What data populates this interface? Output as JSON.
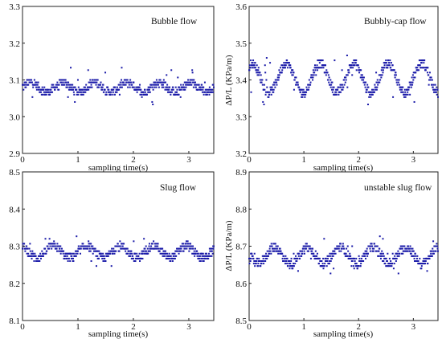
{
  "figure": {
    "marker_color": "#1a1aa8"
  },
  "chart_data": [
    {
      "type": "scatter",
      "title": "Bubble flow",
      "xlabel": "",
      "ylabel": "",
      "xlim": [
        0,
        3.45
      ],
      "ylim": [
        2.9,
        3.3
      ],
      "xticks": [
        "0",
        "1",
        "2",
        "3"
      ],
      "yticks": [
        "2.9",
        "3.0",
        "3.1",
        "3.2",
        "3.3"
      ],
      "series": [
        {
          "mean": 3.08,
          "amplitude": 0.013,
          "period": 0.58,
          "jitter": 0.011,
          "outlier_range": [
            3.03,
            3.135
          ],
          "x_range": [
            0,
            3.45
          ]
        }
      ]
    },
    {
      "type": "scatter",
      "title": "Bubbly-cap flow",
      "xlabel": "",
      "ylabel": "ΔP/L (KPa/m)",
      "xlim": [
        0,
        3.45
      ],
      "ylim": [
        3.2,
        3.6
      ],
      "xticks": [
        "0",
        "1",
        "2",
        "3"
      ],
      "yticks": [
        "3.2",
        "3.3",
        "3.4",
        "3.5",
        "3.6"
      ],
      "series": [
        {
          "mean": 3.405,
          "amplitude": 0.04,
          "period": 0.62,
          "jitter": 0.012,
          "outlier_range": [
            3.33,
            3.47
          ],
          "x_range": [
            0,
            3.45
          ]
        }
      ]
    },
    {
      "type": "scatter",
      "title": "Slug flow",
      "xlabel": "sampling time(s)",
      "ylabel": "",
      "xlim": [
        0,
        3.45
      ],
      "ylim": [
        8.1,
        8.5
      ],
      "xticks": [
        "0",
        "1",
        "2",
        "3"
      ],
      "yticks": [
        "8.1",
        "8.2",
        "8.3",
        "8.4",
        "8.5"
      ],
      "series": [
        {
          "mean": 8.285,
          "amplitude": 0.016,
          "period": 0.6,
          "jitter": 0.011,
          "outlier_range": [
            8.235,
            8.33
          ],
          "x_range": [
            0,
            3.45
          ]
        }
      ]
    },
    {
      "type": "scatter",
      "title": "unstable slug flow",
      "xlabel": "sampling time(s)",
      "ylabel": "ΔP/L (KPa/m)",
      "xlim": [
        0,
        3.45
      ],
      "ylim": [
        8.5,
        8.9
      ],
      "xticks": [
        "0",
        "1",
        "2",
        "3"
      ],
      "yticks": [
        "8.5",
        "8.6",
        "8.7",
        "8.8",
        "8.9"
      ],
      "series": [
        {
          "mean": 8.675,
          "amplitude": 0.022,
          "period": 0.6,
          "jitter": 0.012,
          "outlier_range": [
            8.625,
            8.73
          ],
          "x_range": [
            0,
            3.45
          ]
        }
      ]
    }
  ],
  "top_xlabels": [
    "sampling time(s)",
    "sampling time(s)"
  ]
}
